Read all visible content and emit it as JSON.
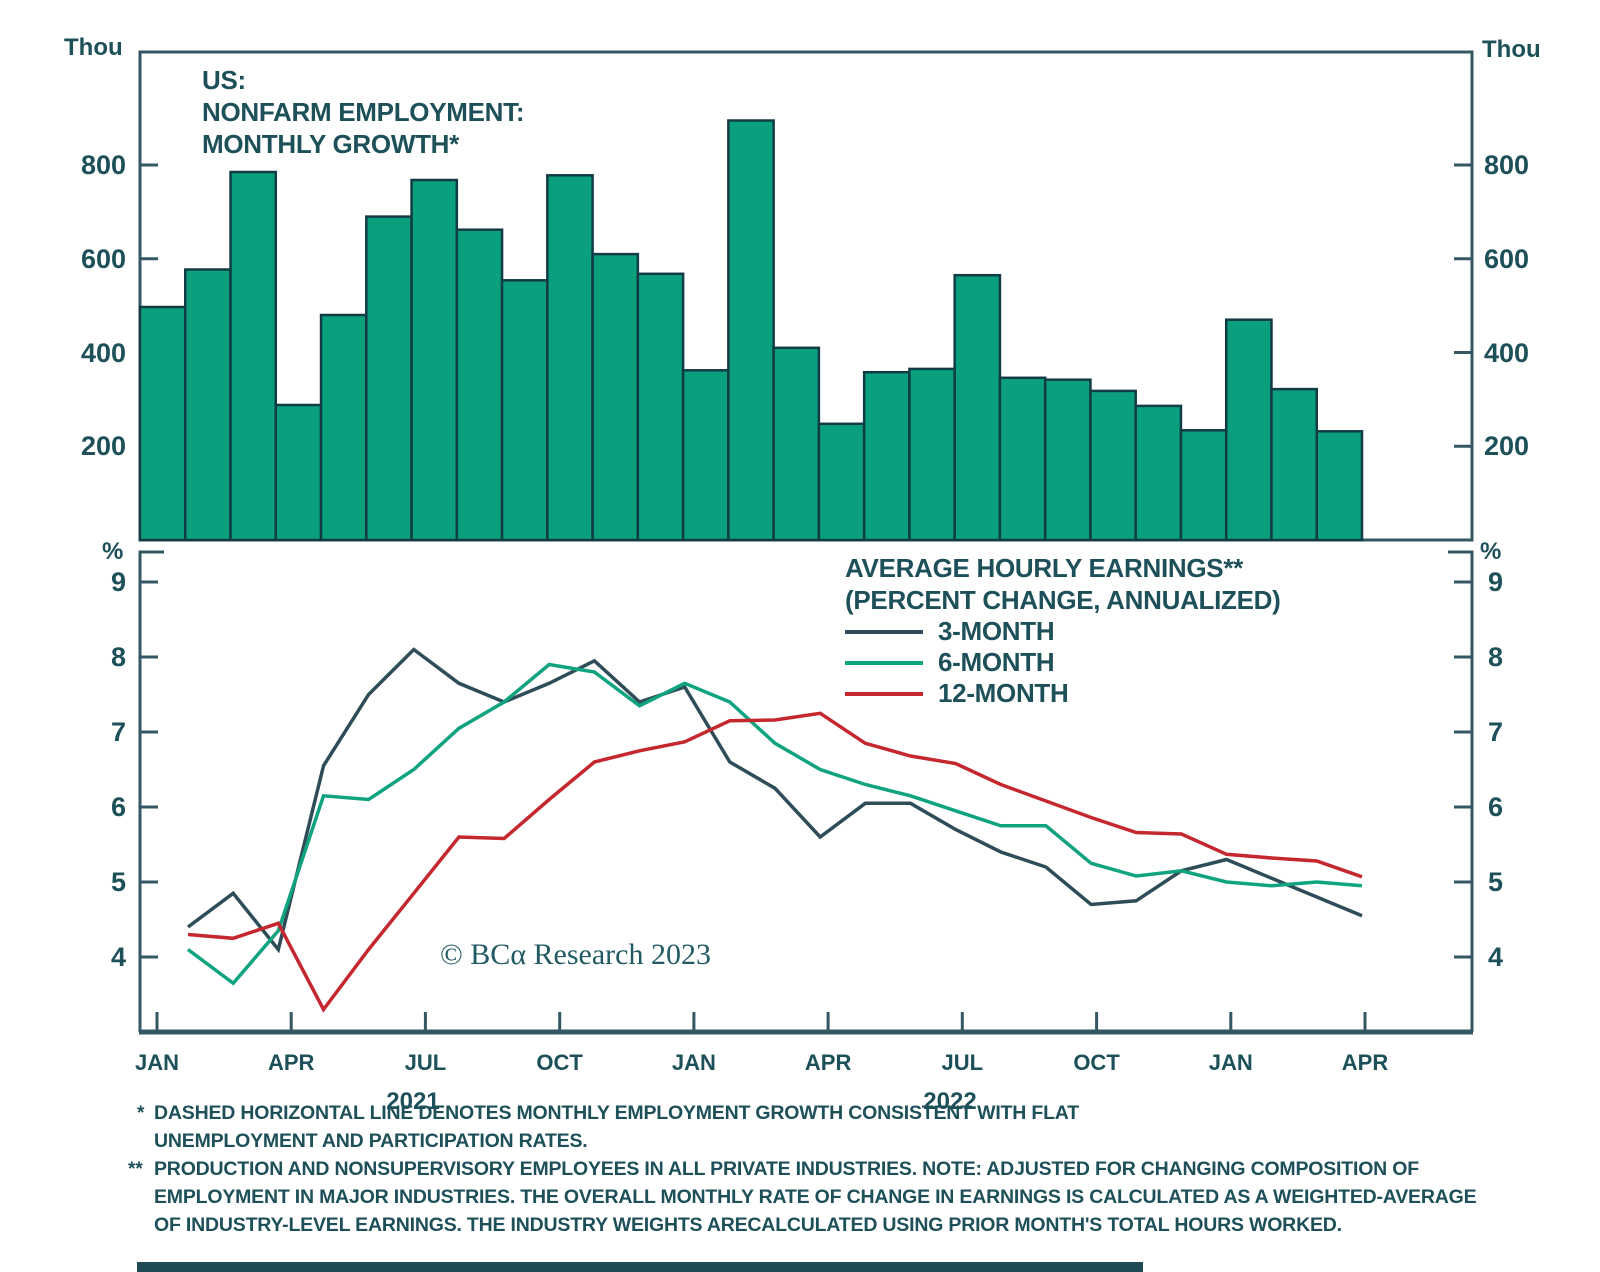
{
  "colors": {
    "background": "#ffffff",
    "text_teal": "#1d5059",
    "axis": "#335863",
    "bar_fill": "#0aa07d",
    "bar_stroke": "#123c45",
    "line_3m": "#2e4d58",
    "line_6m": "#10a37f",
    "line_12m": "#c5272e",
    "footer_bar": "#1e4b55"
  },
  "top_chart": {
    "unit_left": "Thou",
    "unit_right": "Thou",
    "title_lines": [
      "US:",
      "NONFARM EMPLOYMENT:",
      "MONTHLY GROWTH*"
    ],
    "y_tick_labels": [
      "200",
      "400",
      "600",
      "800"
    ]
  },
  "bottom_chart": {
    "unit_left": "%",
    "unit_right": "%",
    "y_tick_labels": [
      "4",
      "5",
      "6",
      "7",
      "8",
      "9"
    ],
    "x_tick_labels": [
      "JAN",
      "APR",
      "JUL",
      "OCT",
      "JAN",
      "APR",
      "JUL",
      "OCT",
      "JAN",
      "APR"
    ],
    "year_labels": [
      {
        "label": "2021"
      },
      {
        "label": "2022"
      }
    ],
    "legend": {
      "title_line1": "AVERAGE HOURLY EARNINGS**",
      "title_line2": "(PERCENT CHANGE, ANNUALIZED)",
      "series": [
        {
          "label": "3-MONTH"
        },
        {
          "label": "6-MONTH"
        },
        {
          "label": "12-MONTH"
        }
      ]
    },
    "copyright": "© BCα Research 2023"
  },
  "footnotes": [
    {
      "marker": "*",
      "text": "DASHED HORIZONTAL LINE DENOTES MONTHLY EMPLOYMENT GROWTH CONSISTENT WITH FLAT"
    },
    {
      "marker": "",
      "text": "UNEMPLOYMENT AND PARTICIPATION RATES."
    },
    {
      "marker": "**",
      "text": "PRODUCTION AND NONSUPERVISORY EMPLOYEES IN ALL PRIVATE INDUSTRIES. NOTE: ADJUSTED FOR CHANGING COMPOSITION OF"
    },
    {
      "marker": "",
      "text": "EMPLOYMENT IN MAJOR INDUSTRIES. THE OVERALL MONTHLY RATE OF CHANGE IN EARNINGS IS CALCULATED AS A WEIGHTED-AVERAGE"
    },
    {
      "marker": "",
      "text": "OF INDUSTRY-LEVEL EARNINGS. THE INDUSTRY WEIGHTS ARECALCULATED USING PRIOR MONTH'S TOTAL HOURS WORKED."
    }
  ],
  "chart_data": [
    {
      "type": "bar",
      "title": "US: NONFARM EMPLOYMENT: MONTHLY GROWTH*",
      "xlabel": "",
      "ylabel": "Thou",
      "ylim": [
        0,
        1040
      ],
      "y_ticks": [
        200,
        400,
        600,
        800
      ],
      "grid": false,
      "bar_color": "#0aa07d",
      "categories": [
        "Jan 2021",
        "Feb 2021",
        "Mar 2021",
        "Apr 2021",
        "May 2021",
        "Jun 2021",
        "Jul 2021",
        "Aug 2021",
        "Sep 2021",
        "Oct 2021",
        "Nov 2021",
        "Dec 2021",
        "Jan 2022",
        "Feb 2022",
        "Mar 2022",
        "Apr 2022",
        "May 2022",
        "Jun 2022",
        "Jul 2022",
        "Aug 2022",
        "Sep 2022",
        "Oct 2022",
        "Nov 2022",
        "Dec 2022",
        "Jan 2023",
        "Feb 2023",
        "Mar 2023"
      ],
      "values": [
        497,
        577,
        785,
        288,
        480,
        690,
        768,
        662,
        554,
        778,
        610,
        568,
        362,
        895,
        410,
        248,
        358,
        365,
        565,
        346,
        342,
        318,
        286,
        234,
        470,
        322,
        232
      ]
    },
    {
      "type": "line",
      "title": "AVERAGE HOURLY EARNINGS** (PERCENT CHANGE, ANNUALIZED)",
      "xlabel": "",
      "ylabel": "%",
      "ylim": [
        3.0,
        9.4
      ],
      "y_ticks": [
        4,
        5,
        6,
        7,
        8,
        9
      ],
      "grid": false,
      "legend_position": "top-right",
      "x_axis_tick_labels": [
        "JAN",
        "APR",
        "JUL",
        "OCT",
        "JAN",
        "APR",
        "JUL",
        "OCT",
        "JAN",
        "APR"
      ],
      "x_axis_years": [
        "2021",
        "2022"
      ],
      "x": [
        "Feb 2021",
        "Mar 2021",
        "Apr 2021",
        "May 2021",
        "Jun 2021",
        "Jul 2021",
        "Aug 2021",
        "Sep 2021",
        "Oct 2021",
        "Nov 2021",
        "Dec 2021",
        "Jan 2022",
        "Feb 2022",
        "Mar 2022",
        "Apr 2022",
        "May 2022",
        "Jun 2022",
        "Jul 2022",
        "Aug 2022",
        "Sep 2022",
        "Oct 2022",
        "Nov 2022",
        "Dec 2022",
        "Jan 2023",
        "Feb 2023",
        "Mar 2023",
        "Apr 2023"
      ],
      "series": [
        {
          "name": "3-MONTH",
          "color": "#2e4d58",
          "values": [
            4.4,
            4.85,
            4.1,
            6.55,
            7.5,
            8.1,
            7.65,
            7.4,
            7.65,
            7.95,
            7.4,
            7.6,
            6.6,
            6.25,
            5.6,
            6.05,
            6.05,
            5.7,
            5.4,
            5.2,
            4.7,
            4.75,
            5.15,
            5.3,
            5.05,
            4.8,
            4.55
          ]
        },
        {
          "name": "6-MONTH",
          "color": "#10a37f",
          "values": [
            4.1,
            3.65,
            4.35,
            6.15,
            6.1,
            6.5,
            7.05,
            7.4,
            7.9,
            7.8,
            7.35,
            7.65,
            7.4,
            6.85,
            6.5,
            6.3,
            6.15,
            5.95,
            5.75,
            5.75,
            5.25,
            5.08,
            5.15,
            5.0,
            4.95,
            5.0,
            4.95
          ]
        },
        {
          "name": "12-MONTH",
          "color": "#c5272e",
          "values": [
            4.3,
            4.25,
            4.45,
            3.3,
            4.1,
            4.85,
            5.6,
            5.58,
            6.1,
            6.6,
            6.75,
            6.87,
            7.15,
            7.16,
            7.25,
            6.85,
            6.68,
            6.58,
            6.3,
            6.08,
            5.86,
            5.66,
            5.64,
            5.37,
            5.32,
            5.28,
            5.07
          ]
        }
      ]
    }
  ]
}
